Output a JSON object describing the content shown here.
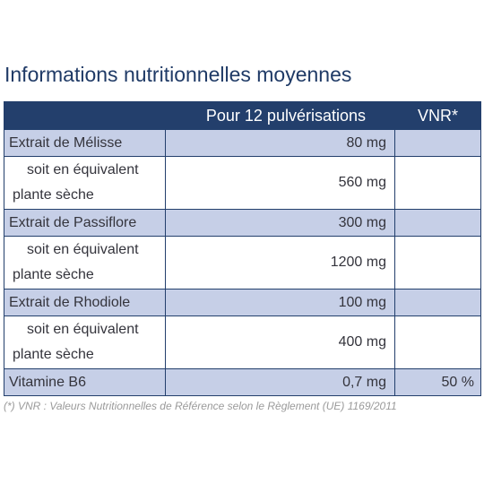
{
  "title": "Informations nutritionnelles moyennes",
  "table": {
    "headers": [
      "",
      "Pour 12 pulvérisations",
      "VNR*"
    ],
    "rows": [
      {
        "name": "Extrait de Mélisse",
        "value": "80 mg",
        "vnr": ""
      },
      {
        "name_line1": "soit en équivalent",
        "name_line2": "plante sèche",
        "value": "560 mg",
        "vnr": ""
      },
      {
        "name": "Extrait de Passiflore",
        "value": "300 mg",
        "vnr": ""
      },
      {
        "name_line1": "soit en équivalent",
        "name_line2": "plante sèche",
        "value": "1200 mg",
        "vnr": ""
      },
      {
        "name": "Extrait de Rhodiole",
        "value": "100 mg",
        "vnr": ""
      },
      {
        "name_line1": "soit en équivalent",
        "name_line2": "plante sèche",
        "value": "400 mg",
        "vnr": ""
      },
      {
        "name": "Vitamine B6",
        "value": "0,7 mg",
        "vnr": "50 %"
      }
    ]
  },
  "footnote": "(*) VNR : Valeurs Nutritionnelles de Référence selon le Règlement (UE) 1169/2011",
  "colors": {
    "header_bg": "#233f6c",
    "title": "#1f3a66",
    "shaded_row": "#c6cfe7",
    "footnote": "#9a9a9a"
  }
}
